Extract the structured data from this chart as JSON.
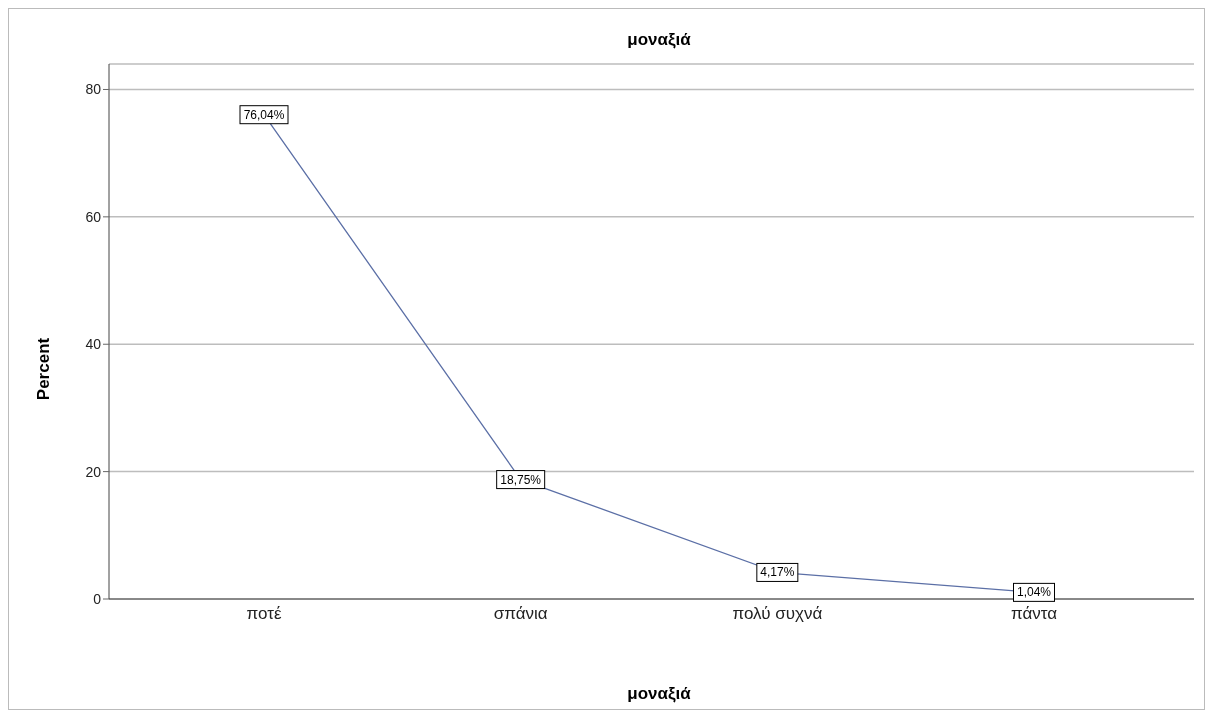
{
  "chart_data": {
    "type": "line",
    "title": "μοναξιά",
    "xlabel": "μοναξιά",
    "ylabel": "Percent",
    "categories": [
      "ποτέ",
      "σπάνια",
      "πολύ συχνά",
      "πάντα"
    ],
    "values": [
      76.04,
      18.75,
      4.17,
      1.04
    ],
    "value_labels": [
      "76,04%",
      "18,75%",
      "4,17%",
      "1,04%"
    ],
    "color": "#5b6fa6",
    "line_style": "solid",
    "ylim": [
      0,
      84
    ],
    "yticks": [
      0,
      20,
      40,
      60,
      80
    ],
    "grid": "y"
  }
}
